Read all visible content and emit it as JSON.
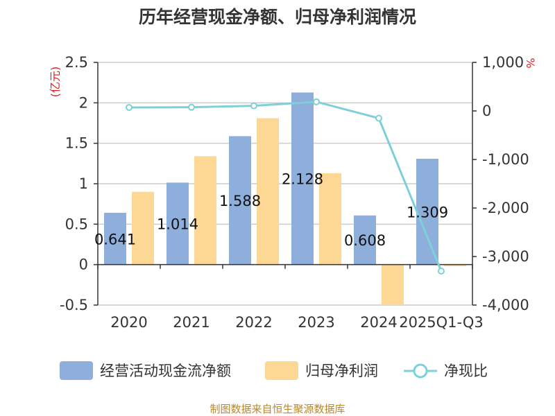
{
  "title": "历年经营现金净额、归母净利润情况",
  "source": "制图数据来自恒生聚源数据库",
  "colors": {
    "cash": "#8eaedb",
    "profit": "#fdd895",
    "ratio": "#7dd0d8"
  },
  "chart_data": {
    "type": "bar+line",
    "categories": [
      "2020",
      "2021",
      "2022",
      "2023",
      "2024",
      "2025Q1-Q3"
    ],
    "series": [
      {
        "name": "经营活动现金流净额",
        "axis": "left",
        "type": "bar",
        "values": [
          0.641,
          1.014,
          1.588,
          2.128,
          0.608,
          1.309
        ],
        "labels": [
          "0.641",
          "1.014",
          "1.588",
          "2.128",
          "0.608",
          "1.309"
        ]
      },
      {
        "name": "归母净利润",
        "axis": "left",
        "type": "bar",
        "values": [
          0.9,
          1.34,
          1.81,
          1.13,
          -0.5,
          -0.02
        ]
      },
      {
        "name": "净现比",
        "axis": "right",
        "type": "line",
        "values": [
          71,
          76,
          106,
          188,
          -150,
          -3300
        ]
      }
    ],
    "left_axis": {
      "unit": "(亿元)",
      "ylim": [
        -0.5,
        2.5
      ],
      "ticks": [
        2.5,
        2,
        1.5,
        1,
        0.5,
        0,
        -0.5
      ],
      "tick_labels": [
        "2.5",
        "2",
        "1.5",
        "1",
        "0.5",
        "0",
        "-0.5"
      ]
    },
    "right_axis": {
      "unit": "%",
      "ylim": [
        -4000,
        1000
      ],
      "ticks": [
        1000,
        0,
        -1000,
        -2000,
        -3000,
        -4000
      ],
      "tick_labels": [
        "1,000",
        "0",
        "-1,000",
        "-2,000",
        "-3,000",
        "-4,000"
      ]
    },
    "legend_position": "bottom",
    "grid": true
  }
}
